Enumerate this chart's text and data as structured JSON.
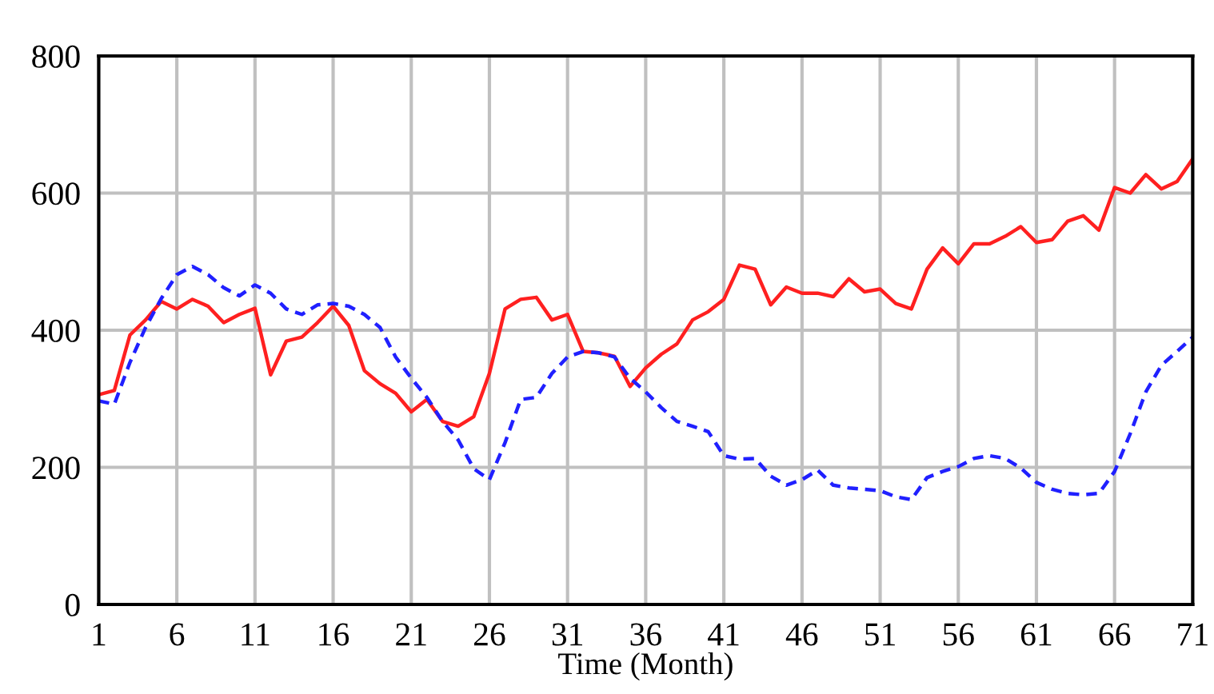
{
  "chart_data": {
    "type": "line",
    "xlabel": "Time (Month)",
    "x": [
      1,
      2,
      3,
      4,
      5,
      6,
      7,
      8,
      9,
      10,
      11,
      12,
      13,
      14,
      15,
      16,
      17,
      18,
      19,
      20,
      21,
      22,
      23,
      24,
      25,
      26,
      27,
      28,
      29,
      30,
      31,
      32,
      33,
      34,
      35,
      36,
      37,
      38,
      39,
      40,
      41,
      42,
      43,
      44,
      45,
      46,
      47,
      48,
      49,
      50,
      51,
      52,
      53,
      54,
      55,
      56,
      57,
      58,
      59,
      60,
      61,
      62,
      63,
      64,
      65,
      66,
      67,
      68,
      69,
      70,
      71
    ],
    "series": [
      {
        "color": "#ff2020",
        "line_style": "solid",
        "values": [
          306,
          312,
          393,
          415,
          442,
          431,
          445,
          435,
          411,
          423,
          432,
          335,
          384,
          390,
          411,
          435,
          407,
          341,
          322,
          308,
          281,
          299,
          267,
          260,
          274,
          337,
          431,
          445,
          448,
          415,
          423,
          369,
          367,
          362,
          318,
          345,
          365,
          380,
          415,
          427,
          445,
          495,
          489,
          437,
          463,
          454,
          454,
          449,
          475,
          456,
          460,
          439,
          431,
          489,
          520,
          497,
          526,
          526,
          537,
          551,
          528,
          532,
          559,
          567,
          546,
          608,
          600,
          627,
          606,
          617,
          650
        ]
      },
      {
        "color": "#2020ff",
        "line_style": "dashed",
        "values": [
          297,
          292,
          353,
          404,
          446,
          481,
          493,
          481,
          462,
          450,
          466,
          454,
          431,
          423,
          437,
          439,
          435,
          423,
          404,
          361,
          330,
          302,
          267,
          240,
          198,
          182,
          236,
          299,
          302,
          337,
          361,
          369,
          367,
          361,
          330,
          310,
          287,
          267,
          260,
          252,
          217,
          212,
          213,
          187,
          174,
          182,
          196,
          174,
          170,
          168,
          166,
          157,
          153,
          185,
          194,
          201,
          213,
          217,
          213,
          199,
          178,
          168,
          162,
          160,
          162,
          194,
          249,
          310,
          349,
          369,
          390
        ]
      }
    ],
    "xlim": [
      1,
      71
    ],
    "xticks": [
      1,
      6,
      11,
      16,
      21,
      26,
      31,
      36,
      41,
      46,
      51,
      56,
      61,
      66,
      71
    ],
    "ylim": [
      0,
      800
    ],
    "yticks": [
      0,
      200,
      400,
      600,
      800
    ],
    "grid": true
  }
}
